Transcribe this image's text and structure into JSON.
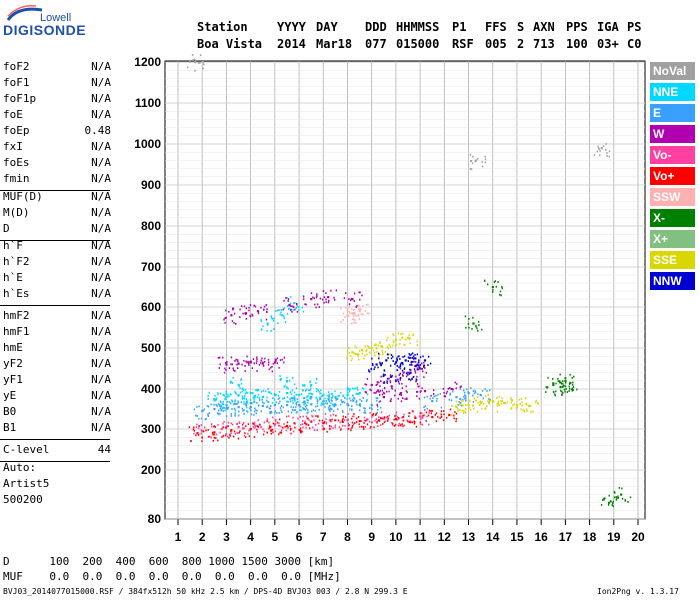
{
  "logo": {
    "top": "Lowell",
    "bottom": "DIGISONDE"
  },
  "header": {
    "labels": [
      "Station",
      "YYYY",
      "DAY",
      "DDD",
      "HHMMSS",
      "P1",
      "FFS",
      "S",
      "AXN",
      "PPS",
      "IGA",
      "PS"
    ],
    "values": [
      "Boa Vista",
      "2014",
      "Mar18",
      "077",
      "015000",
      "RSF",
      "005",
      "2",
      "713",
      "100",
      "03+",
      "C0"
    ]
  },
  "params_group1": [
    {
      "k": "foF2",
      "v": "N/A"
    },
    {
      "k": "foF1",
      "v": "N/A"
    },
    {
      "k": "foF1p",
      "v": "N/A"
    },
    {
      "k": "foE",
      "v": "N/A"
    },
    {
      "k": "foEp",
      "v": "0.48"
    },
    {
      "k": "fxI",
      "v": "N/A"
    },
    {
      "k": "foEs",
      "v": "N/A"
    },
    {
      "k": "fmin",
      "v": "N/A"
    }
  ],
  "params_group2": [
    {
      "k": "MUF(D)",
      "v": "N/A"
    },
    {
      "k": "M(D)",
      "v": "N/A"
    },
    {
      "k": "D",
      "v": "N/A"
    }
  ],
  "params_group3": [
    {
      "k": "h`F",
      "v": "N/A"
    },
    {
      "k": "h`F2",
      "v": "N/A"
    },
    {
      "k": "h`E",
      "v": "N/A"
    },
    {
      "k": "h`Es",
      "v": "N/A"
    }
  ],
  "params_group4": [
    {
      "k": "hmF2",
      "v": "N/A"
    },
    {
      "k": "hmF1",
      "v": "N/A"
    },
    {
      "k": "hmE",
      "v": "N/A"
    },
    {
      "k": "yF2",
      "v": "N/A"
    },
    {
      "k": "yF1",
      "v": "N/A"
    },
    {
      "k": "yE",
      "v": "N/A"
    },
    {
      "k": "B0",
      "v": "N/A"
    },
    {
      "k": "B1",
      "v": "N/A"
    }
  ],
  "clevel": {
    "k": "C-level",
    "v": "44"
  },
  "auto": [
    "Auto:",
    "Artist5",
    "500200"
  ],
  "legend": [
    {
      "label": "NoVal",
      "bg": "#a0a0a0",
      "fg": "#ffffff"
    },
    {
      "label": "NNE",
      "bg": "#00d8ff",
      "fg": "#ffffff"
    },
    {
      "label": "E",
      "bg": "#3aa0ff",
      "fg": "#ffffff"
    },
    {
      "label": "W",
      "bg": "#b000b0",
      "fg": "#ffffff"
    },
    {
      "label": "Vo-",
      "bg": "#ff40a0",
      "fg": "#ffffff"
    },
    {
      "label": "Vo+",
      "bg": "#ff0000",
      "fg": "#ffffff"
    },
    {
      "label": "SSW",
      "bg": "#ffb0b0",
      "fg": "#ffffff"
    },
    {
      "label": "X-",
      "bg": "#008000",
      "fg": "#ffffff"
    },
    {
      "label": "X+",
      "bg": "#80c080",
      "fg": "#ffffff"
    },
    {
      "label": "SSE",
      "bg": "#d8d800",
      "fg": "#ffffff"
    },
    {
      "label": "NNW",
      "bg": "#0000d0",
      "fg": "#ffffff"
    }
  ],
  "chart_data": {
    "type": "scatter",
    "x_ticks": [
      "1",
      "2",
      "3",
      "4",
      "5",
      "6",
      "7",
      "8",
      "9",
      "10",
      "11",
      "12",
      "13",
      "14",
      "15",
      "16",
      "17",
      "18",
      "19",
      "20"
    ],
    "y_ticks": [
      "80",
      "200",
      "300",
      "400",
      "500",
      "600",
      "700",
      "800",
      "900",
      "1000",
      "1100",
      "1200"
    ],
    "xlim": [
      1,
      20
    ],
    "ylim": [
      80,
      1200
    ],
    "series": [
      {
        "name": "NNE",
        "color": "#00d8ff",
        "points": [
          [
            2.5,
            375
          ],
          [
            3.0,
            380
          ],
          [
            3.5,
            385
          ],
          [
            4.0,
            390
          ],
          [
            4.5,
            380
          ],
          [
            5.0,
            385
          ],
          [
            5.5,
            390
          ],
          [
            6.0,
            385
          ],
          [
            6.5,
            380
          ],
          [
            7.0,
            385
          ],
          [
            7.5,
            380
          ],
          [
            8.0,
            385
          ],
          [
            3.5,
            410
          ],
          [
            5.5,
            420
          ],
          [
            6.5,
            410
          ],
          [
            3.0,
            360
          ],
          [
            4.0,
            365
          ],
          [
            6.0,
            360
          ],
          [
            7.0,
            370
          ],
          [
            8.5,
            390
          ],
          [
            5.8,
            610
          ],
          [
            4.7,
            560
          ],
          [
            5.3,
            580
          ]
        ]
      },
      {
        "name": "E",
        "color": "#3aa0ff",
        "points": [
          [
            2.0,
            345
          ],
          [
            2.5,
            350
          ],
          [
            3.0,
            352
          ],
          [
            3.5,
            355
          ],
          [
            4.0,
            355
          ],
          [
            4.5,
            358
          ],
          [
            5.0,
            360
          ],
          [
            5.5,
            360
          ],
          [
            6.0,
            360
          ],
          [
            6.5,
            362
          ],
          [
            7.0,
            362
          ],
          [
            7.5,
            360
          ],
          [
            8.0,
            362
          ],
          [
            8.5,
            360
          ],
          [
            9.0,
            360
          ],
          [
            12.5,
            380
          ],
          [
            13.0,
            390
          ],
          [
            13.5,
            385
          ],
          [
            11.5,
            370
          ]
        ]
      },
      {
        "name": "W",
        "color": "#b000b0",
        "points": [
          [
            3.0,
            460
          ],
          [
            3.5,
            462
          ],
          [
            4.0,
            465
          ],
          [
            4.5,
            462
          ],
          [
            5.0,
            465
          ],
          [
            3.2,
            580
          ],
          [
            3.8,
            585
          ],
          [
            4.3,
            590
          ],
          [
            5.6,
            605
          ],
          [
            6.5,
            620
          ],
          [
            7.2,
            625
          ],
          [
            8.2,
            620
          ],
          [
            9.0,
            410
          ],
          [
            9.5,
            415
          ],
          [
            10.0,
            420
          ],
          [
            10.5,
            440
          ],
          [
            11.0,
            450
          ],
          [
            9.5,
            380
          ],
          [
            10.2,
            390
          ],
          [
            11.2,
            395
          ],
          [
            12.3,
            400
          ]
        ]
      },
      {
        "name": "Vo-",
        "color": "#ff40a0",
        "points": [
          [
            2.0,
            295
          ],
          [
            2.8,
            300
          ],
          [
            3.5,
            305
          ],
          [
            4.2,
            308
          ],
          [
            5.0,
            312
          ],
          [
            5.8,
            315
          ],
          [
            6.5,
            318
          ],
          [
            7.3,
            320
          ],
          [
            8.0,
            322
          ],
          [
            8.8,
            324
          ],
          [
            9.5,
            326
          ],
          [
            10.3,
            330
          ],
          [
            11.0,
            332
          ]
        ]
      },
      {
        "name": "Vo+",
        "color": "#ff0000",
        "points": [
          [
            1.8,
            290
          ],
          [
            2.5,
            292
          ],
          [
            3.2,
            297
          ],
          [
            4.0,
            300
          ],
          [
            4.8,
            305
          ],
          [
            5.5,
            308
          ],
          [
            6.3,
            312
          ],
          [
            7.0,
            315
          ],
          [
            7.8,
            318
          ],
          [
            8.5,
            320
          ],
          [
            9.3,
            322
          ],
          [
            10.0,
            325
          ],
          [
            10.8,
            328
          ],
          [
            11.5,
            330
          ],
          [
            12.2,
            335
          ]
        ]
      },
      {
        "name": "SSE",
        "color": "#d8d800",
        "points": [
          [
            8.2,
            490
          ],
          [
            8.6,
            495
          ],
          [
            9.0,
            500
          ],
          [
            9.4,
            505
          ],
          [
            10.0,
            520
          ],
          [
            10.5,
            525
          ],
          [
            13.0,
            360
          ],
          [
            13.5,
            365
          ],
          [
            14.0,
            370
          ],
          [
            14.5,
            365
          ],
          [
            15.0,
            360
          ],
          [
            15.5,
            358
          ],
          [
            12.5,
            355
          ]
        ]
      },
      {
        "name": "NNW",
        "color": "#0000d0",
        "points": [
          [
            9.2,
            460
          ],
          [
            9.6,
            470
          ],
          [
            10.0,
            465
          ],
          [
            10.4,
            470
          ],
          [
            10.8,
            475
          ],
          [
            11.2,
            470
          ],
          [
            9.8,
            430
          ],
          [
            10.6,
            440
          ]
        ]
      },
      {
        "name": "X-",
        "color": "#008000",
        "points": [
          [
            16.5,
            410
          ],
          [
            17.0,
            420
          ],
          [
            16.8,
            405
          ],
          [
            17.2,
            415
          ],
          [
            13.2,
            560
          ],
          [
            18.8,
            120
          ],
          [
            19.3,
            140
          ],
          [
            14.0,
            650
          ]
        ]
      },
      {
        "name": "SSW",
        "color": "#ffb0b0",
        "points": [
          [
            8.0,
            580
          ],
          [
            8.2,
            585
          ],
          [
            8.5,
            590
          ]
        ]
      },
      {
        "name": "NoVal",
        "color": "#a0a0a0",
        "points": [
          [
            1.7,
            1200
          ],
          [
            13.3,
            960
          ],
          [
            18.5,
            990
          ]
        ]
      }
    ]
  },
  "footer_table": {
    "row1": "D      100  200  400  600  800 1000 1500 3000 [km]",
    "row2": "MUF    0.0  0.0  0.0  0.0  0.0  0.0  0.0  0.0 [MHz]"
  },
  "footer": {
    "left": "BVJ03_2014077015000.RSF / 384fx512h 50 kHz 2.5 km / DPS-4D BVJ03 003 / 2.8 N 299.3 E",
    "right": "Ion2Png v. 1.3.17"
  }
}
